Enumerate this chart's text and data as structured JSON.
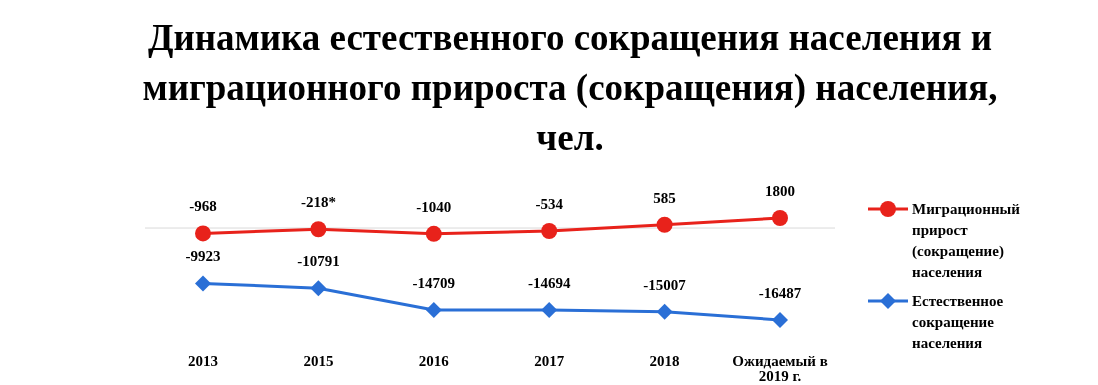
{
  "chart_data": {
    "type": "line",
    "title": "Динамика естественного сокращения населения и миграционного прироста (сокращения) населения, чел.",
    "categories": [
      "2013",
      "2015",
      "2016",
      "2017",
      "2018",
      "Ожидаемый в 2019 г."
    ],
    "series": [
      {
        "name": "Миграционный прирост (сокращение) населения",
        "color": "#e8221b",
        "marker": "circle",
        "values": [
          -968,
          -218,
          -1040,
          -534,
          585,
          1800
        ],
        "value_labels": [
          "-968",
          "-218*",
          "-1040",
          "-534",
          "585",
          "1800"
        ]
      },
      {
        "name": "Естественное сокращение населения",
        "color": "#2a6fd6",
        "marker": "diamond",
        "values": [
          -9923,
          -10791,
          -14709,
          -14694,
          -15007,
          -16487
        ],
        "value_labels": [
          "-9923",
          "-10791",
          "-14709",
          "-14694",
          "-15007",
          "-16487"
        ]
      }
    ],
    "ref_lines": [
      {
        "axis": "y",
        "value": 0,
        "color": "#d9d9d9"
      }
    ],
    "legend": "right",
    "tick_labels": "x",
    "line_style": "solid"
  }
}
